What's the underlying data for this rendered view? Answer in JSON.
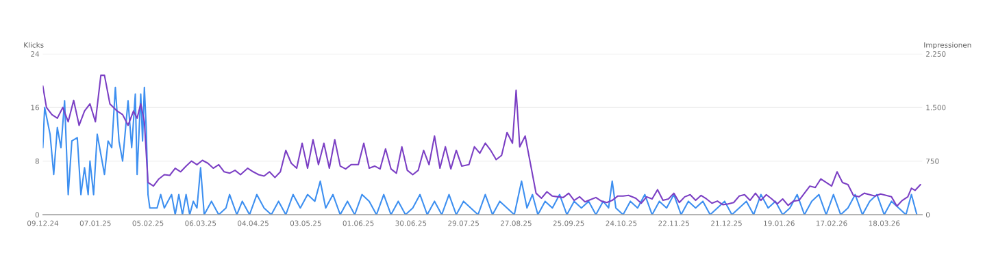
{
  "chart_data": {
    "type": "line",
    "xlabel": null,
    "ylabel": "Klicks",
    "y2label": "Impressionen",
    "ylim": [
      0,
      24
    ],
    "yticks": [
      0,
      8,
      16,
      24
    ],
    "y2lim": [
      0,
      2250
    ],
    "y2ticks": [
      0,
      {
        "value": 750,
        "label": "750"
      },
      {
        "value": 1500,
        "label": "1.500"
      },
      {
        "value": 2250,
        "label": "2.250"
      }
    ],
    "xlim": [
      "2024-12-09",
      "2026-04-08"
    ],
    "xticks": [
      {
        "value": "2024-12-09",
        "label": "09.12.24"
      },
      {
        "value": "2025-01-07",
        "label": "07.01.25"
      },
      {
        "value": "2025-02-05",
        "label": "05.02.25"
      },
      {
        "value": "2025-03-06",
        "label": "06.03.25"
      },
      {
        "value": "2025-04-04",
        "label": "04.04.25"
      },
      {
        "value": "2025-05-03",
        "label": "03.05.25"
      },
      {
        "value": "2025-06-01",
        "label": "01.06.25"
      },
      {
        "value": "2025-06-30",
        "label": "30.06.25"
      },
      {
        "value": "2025-07-29",
        "label": "29.07.25"
      },
      {
        "value": "2025-08-27",
        "label": "27.08.25"
      },
      {
        "value": "2025-09-25",
        "label": "25.09.25"
      },
      {
        "value": "2025-10-24",
        "label": "24.10.25"
      },
      {
        "value": "2025-11-22",
        "label": "22.11.25"
      },
      {
        "value": "2025-12-21",
        "label": "21.12.25"
      },
      {
        "value": "2026-01-19",
        "label": "19.01.26"
      },
      {
        "value": "2026-02-17",
        "label": "17.02.26"
      },
      {
        "value": "2026-03-18",
        "label": "18.03.26"
      }
    ],
    "grid": "y",
    "legend": false,
    "marker": "none",
    "line_style": "solid",
    "series": [
      {
        "color": "#7b3fc4",
        "axis": "y2",
        "x": [
          "2024-12-09",
          "2024-12-11",
          "2024-12-14",
          "2024-12-17",
          "2024-12-20",
          "2024-12-23",
          "2024-12-26",
          "2024-12-29",
          "2025-01-01",
          "2025-01-04",
          "2025-01-07",
          "2025-01-10",
          "2025-01-12",
          "2025-01-15",
          "2025-01-19",
          "2025-01-22",
          "2025-01-25",
          "2025-01-28",
          "2025-01-30",
          "2025-02-01",
          "2025-02-03",
          "2025-02-05",
          "2025-02-08",
          "2025-02-11",
          "2025-02-14",
          "2025-02-17",
          "2025-02-20",
          "2025-02-23",
          "2025-02-26",
          "2025-03-01",
          "2025-03-04",
          "2025-03-07",
          "2025-03-10",
          "2025-03-13",
          "2025-03-16",
          "2025-03-19",
          "2025-03-22",
          "2025-03-25",
          "2025-03-28",
          "2025-04-01",
          "2025-04-04",
          "2025-04-07",
          "2025-04-10",
          "2025-04-13",
          "2025-04-16",
          "2025-04-19",
          "2025-04-22",
          "2025-04-25",
          "2025-04-28",
          "2025-05-01",
          "2025-05-04",
          "2025-05-07",
          "2025-05-10",
          "2025-05-13",
          "2025-05-16",
          "2025-05-19",
          "2025-05-22",
          "2025-05-25",
          "2025-05-28",
          "2025-06-01",
          "2025-06-04",
          "2025-06-07",
          "2025-06-10",
          "2025-06-13",
          "2025-06-16",
          "2025-06-19",
          "2025-06-22",
          "2025-06-25",
          "2025-06-28",
          "2025-07-01",
          "2025-07-04",
          "2025-07-07",
          "2025-07-10",
          "2025-07-13",
          "2025-07-16",
          "2025-07-19",
          "2025-07-22",
          "2025-07-25",
          "2025-07-28",
          "2025-08-01",
          "2025-08-04",
          "2025-08-07",
          "2025-08-10",
          "2025-08-13",
          "2025-08-16",
          "2025-08-19",
          "2025-08-22",
          "2025-08-25",
          "2025-08-27",
          "2025-08-29",
          "2025-09-01",
          "2025-09-04",
          "2025-09-07",
          "2025-09-10",
          "2025-09-13",
          "2025-09-16",
          "2025-09-19",
          "2025-09-22",
          "2025-09-25",
          "2025-09-28",
          "2025-10-01",
          "2025-10-04",
          "2025-10-07",
          "2025-10-10",
          "2025-10-13",
          "2025-10-16",
          "2025-10-19",
          "2025-10-22",
          "2025-10-25",
          "2025-10-28",
          "2025-11-01",
          "2025-11-04",
          "2025-11-07",
          "2025-11-10",
          "2025-11-13",
          "2025-11-16",
          "2025-11-19",
          "2025-11-22",
          "2025-11-25",
          "2025-11-28",
          "2025-12-01",
          "2025-12-04",
          "2025-12-07",
          "2025-12-10",
          "2025-12-13",
          "2025-12-16",
          "2025-12-19",
          "2025-12-22",
          "2025-12-25",
          "2025-12-28",
          "2025-12-31",
          "2026-01-03",
          "2026-01-06",
          "2026-01-09",
          "2026-01-12",
          "2026-01-15",
          "2026-01-18",
          "2026-01-21",
          "2026-01-24",
          "2026-01-27",
          "2026-01-30",
          "2026-02-02",
          "2026-02-05",
          "2026-02-08",
          "2026-02-11",
          "2026-02-14",
          "2026-02-17",
          "2026-02-20",
          "2026-02-23",
          "2026-02-26",
          "2026-03-01",
          "2026-03-04",
          "2026-03-07",
          "2026-03-10",
          "2026-03-13",
          "2026-03-16",
          "2026-03-19",
          "2026-03-22",
          "2026-03-25",
          "2026-03-28",
          "2026-03-31",
          "2026-04-02",
          "2026-04-04",
          "2026-04-07"
        ],
        "values": [
          1800,
          1500,
          1400,
          1350,
          1500,
          1300,
          1600,
          1250,
          1450,
          1550,
          1300,
          1950,
          1950,
          1550,
          1450,
          1400,
          1250,
          1450,
          1350,
          1550,
          1300,
          450,
          400,
          500,
          560,
          550,
          650,
          600,
          680,
          750,
          700,
          760,
          720,
          650,
          700,
          600,
          580,
          620,
          560,
          650,
          600,
          560,
          540,
          600,
          520,
          600,
          900,
          720,
          650,
          1000,
          650,
          1050,
          700,
          1000,
          650,
          1050,
          680,
          640,
          700,
          700,
          1000,
          650,
          680,
          640,
          920,
          640,
          580,
          950,
          620,
          560,
          620,
          900,
          700,
          1100,
          650,
          950,
          640,
          900,
          680,
          700,
          950,
          860,
          1000,
          900,
          770,
          830,
          1150,
          1000,
          1740,
          950,
          1100,
          700,
          300,
          230,
          320,
          260,
          250,
          240,
          300,
          200,
          250,
          180,
          210,
          240,
          190,
          170,
          200,
          260,
          260,
          270,
          230,
          160,
          250,
          220,
          350,
          200,
          220,
          300,
          170,
          250,
          280,
          200,
          270,
          220,
          160,
          190,
          140,
          150,
          170,
          260,
          280,
          200,
          300,
          200,
          280,
          220,
          150,
          220,
          130,
          190,
          200,
          300,
          400,
          380,
          500,
          450,
          400,
          600,
          450,
          420,
          270,
          250,
          300,
          280,
          260,
          290,
          270,
          250,
          120,
          200,
          250,
          370,
          340,
          420
        ]
      },
      {
        "color": "#3d8ff0",
        "x": [
          "2024-12-09",
          "2024-12-10",
          "2024-12-13",
          "2024-12-15",
          "2024-12-17",
          "2024-12-19",
          "2024-12-21",
          "2024-12-23",
          "2024-12-25",
          "2024-12-28",
          "2024-12-30",
          "2025-01-01",
          "2025-01-03",
          "2025-01-04",
          "2025-01-06",
          "2025-01-08",
          "2025-01-10",
          "2025-01-12",
          "2025-01-14",
          "2025-01-16",
          "2025-01-18",
          "2025-01-20",
          "2025-01-22",
          "2025-01-25",
          "2025-01-27",
          "2025-01-29",
          "2025-01-30",
          "2025-02-01",
          "2025-02-02",
          "2025-02-03",
          "2025-02-04",
          "2025-02-05",
          "2025-02-06",
          "2025-02-10",
          "2025-02-12",
          "2025-02-14",
          "2025-02-18",
          "2025-02-20",
          "2025-02-22",
          "2025-02-24",
          "2025-02-26",
          "2025-02-28",
          "2025-03-02",
          "2025-03-04",
          "2025-03-06",
          "2025-03-08",
          "2025-03-12",
          "2025-03-16",
          "2025-03-20",
          "2025-03-22",
          "2025-03-26",
          "2025-03-29",
          "2025-04-02",
          "2025-04-06",
          "2025-04-10",
          "2025-04-14",
          "2025-04-18",
          "2025-04-22",
          "2025-04-26",
          "2025-04-30",
          "2025-05-04",
          "2025-05-08",
          "2025-05-11",
          "2025-05-14",
          "2025-05-18",
          "2025-05-22",
          "2025-05-26",
          "2025-05-30",
          "2025-06-03",
          "2025-06-07",
          "2025-06-11",
          "2025-06-15",
          "2025-06-19",
          "2025-06-23",
          "2025-06-27",
          "2025-07-01",
          "2025-07-05",
          "2025-07-09",
          "2025-07-13",
          "2025-07-17",
          "2025-07-21",
          "2025-07-25",
          "2025-07-29",
          "2025-08-02",
          "2025-08-06",
          "2025-08-10",
          "2025-08-14",
          "2025-08-18",
          "2025-08-22",
          "2025-08-26",
          "2025-08-30",
          "2025-09-02",
          "2025-09-05",
          "2025-09-08",
          "2025-09-12",
          "2025-09-16",
          "2025-09-20",
          "2025-09-24",
          "2025-09-28",
          "2025-10-02",
          "2025-10-06",
          "2025-10-10",
          "2025-10-14",
          "2025-10-17",
          "2025-10-19",
          "2025-10-21",
          "2025-10-25",
          "2025-10-29",
          "2025-11-02",
          "2025-11-06",
          "2025-11-10",
          "2025-11-14",
          "2025-11-18",
          "2025-11-22",
          "2025-11-26",
          "2025-11-30",
          "2025-12-04",
          "2025-12-08",
          "2025-12-12",
          "2025-12-16",
          "2025-12-20",
          "2025-12-24",
          "2025-12-28",
          "2026-01-01",
          "2026-01-05",
          "2026-01-09",
          "2026-01-13",
          "2026-01-17",
          "2026-01-21",
          "2026-01-25",
          "2026-01-29",
          "2026-02-02",
          "2026-02-06",
          "2026-02-10",
          "2026-02-14",
          "2026-02-18",
          "2026-02-22",
          "2026-02-26",
          "2026-03-02",
          "2026-03-06",
          "2026-03-10",
          "2026-03-14",
          "2026-03-18",
          "2026-03-22",
          "2026-03-26",
          "2026-03-30",
          "2026-04-02",
          "2026-04-05"
        ],
        "values": [
          10,
          16,
          12,
          6,
          13,
          10,
          17,
          3,
          11,
          11.5,
          3,
          7,
          3,
          8,
          3,
          12,
          9,
          6,
          11,
          10,
          19,
          11,
          8,
          17,
          10,
          18,
          6,
          18,
          11,
          19,
          13,
          3,
          1,
          1,
          3,
          1,
          3,
          0,
          3,
          0,
          3,
          0,
          2,
          1,
          7,
          0,
          2,
          0,
          1,
          3,
          0,
          2,
          0,
          3,
          1,
          0,
          2,
          0,
          3,
          1,
          3,
          2,
          5,
          1,
          3,
          0,
          2,
          0,
          3,
          2,
          0,
          3,
          0,
          2,
          0,
          1,
          3,
          0,
          2,
          0,
          3,
          0,
          2,
          1,
          0,
          3,
          0,
          2,
          1,
          0,
          5,
          1,
          3,
          0,
          2,
          1,
          3,
          0,
          2,
          1,
          2,
          0,
          2,
          1,
          5,
          1,
          0,
          2,
          1,
          3,
          0,
          2,
          1,
          3,
          0,
          2,
          1,
          2,
          0,
          1,
          2,
          0,
          1,
          2,
          0,
          3,
          1,
          2,
          0,
          1,
          3,
          0,
          2,
          3,
          0,
          3,
          0,
          1,
          3,
          0,
          2,
          3,
          0,
          2,
          1,
          0,
          3,
          0
        ]
      }
    ]
  }
}
